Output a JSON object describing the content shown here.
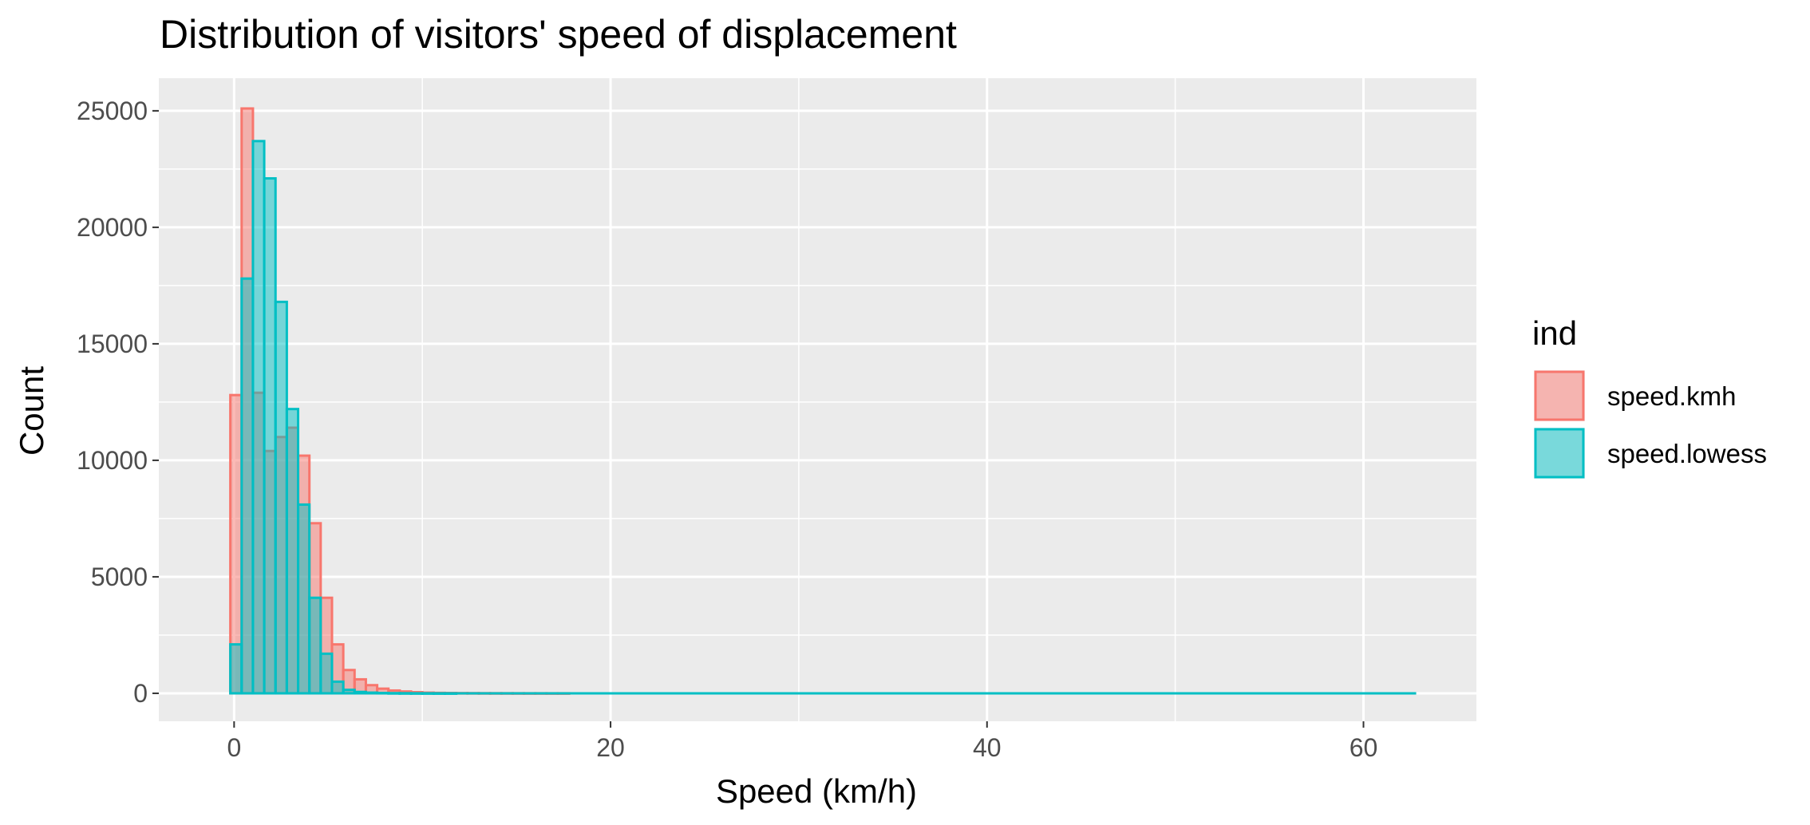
{
  "chart_data": {
    "type": "bar",
    "title": "Distribution of visitors' speed of displacement",
    "xlabel": "Speed (km/h)",
    "ylabel": "Count",
    "xlim": [
      -4,
      66
    ],
    "ylim": [
      -1200,
      26400
    ],
    "x_ticks": [
      0,
      20,
      40,
      60
    ],
    "x_tick_labels": [
      "0",
      "20",
      "40",
      "60"
    ],
    "x_minor_ticks": [
      10,
      30,
      50
    ],
    "y_ticks": [
      0,
      5000,
      10000,
      15000,
      20000,
      25000
    ],
    "y_tick_labels": [
      "0",
      "5000",
      "10000",
      "15000",
      "20000",
      "25000"
    ],
    "y_minor_ticks": [
      2500,
      7500,
      12500,
      17500,
      22500
    ],
    "grid": true,
    "legend": {
      "title": "ind",
      "position": "right"
    },
    "bin_start": -0.2,
    "bin_width": 0.6,
    "x_max": 62.8,
    "series": [
      {
        "name": "speed.kmh",
        "fill": "#F8766D",
        "fill_alpha": 0.5,
        "stroke": "#F8766D",
        "values": [
          12800,
          25100,
          12900,
          10400,
          11000,
          11400,
          10200,
          7300,
          4100,
          2100,
          1000,
          600,
          350,
          200,
          120,
          80,
          50,
          30,
          20,
          15,
          10,
          8,
          6,
          5,
          4,
          3,
          2,
          2,
          1,
          1
        ]
      },
      {
        "name": "speed.lowess",
        "fill": "#00BFC4",
        "fill_alpha": 0.5,
        "stroke": "#00BFC4",
        "values": [
          2100,
          17800,
          23700,
          22100,
          16800,
          12200,
          8100,
          4100,
          1700,
          500,
          150,
          60,
          30,
          15,
          8,
          5,
          3,
          2,
          1,
          1
        ]
      }
    ]
  }
}
